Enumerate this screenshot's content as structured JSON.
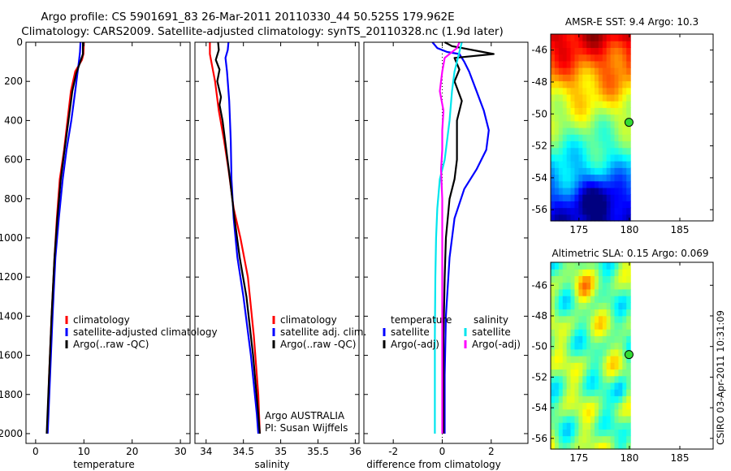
{
  "figure": {
    "title_line1": "Argo profile: CS 5901691_83 26-Mar-2011 20110330_44 50.525S 179.962E",
    "title_line2": "Climatology: CARS2009. Satellite-adjusted climatology: synTS_20110328.nc (1.9d later)",
    "side_stamp": "CSIRO 03-Apr-2011 10:31:09",
    "attribution_line1": "Argo AUSTRALIA",
    "attribution_line2": "PI: Susan Wijffels"
  },
  "colors": {
    "climatology": "#ff0000",
    "satellite": "#0000ff",
    "argo": "#000000",
    "satellite_cyan": "#00e5ee",
    "argo_adj": "#ff00ff",
    "zero_line": "#000000"
  },
  "chart_data": [
    {
      "type": "line",
      "id": "temperature",
      "xlabel": "temperature",
      "ylabel": "",
      "xlim": [
        -2,
        32
      ],
      "ylim": [
        2050,
        0
      ],
      "y_reversed": true,
      "xticks": [
        0,
        10,
        20,
        30
      ],
      "yticks": [
        0,
        200,
        400,
        600,
        800,
        1000,
        1200,
        1400,
        1600,
        1800,
        2000
      ],
      "grid": false,
      "legend": {
        "placement": "lower-middle",
        "entries": [
          {
            "label": "climatology",
            "color_key": "climatology"
          },
          {
            "label": "satellite-adjusted climatology",
            "color_key": "satellite"
          },
          {
            "label": "Argo(..raw -QC)",
            "color_key": "argo"
          }
        ]
      },
      "series": [
        {
          "name": "climatology",
          "color_key": "climatology",
          "points": [
            [
              10.0,
              0
            ],
            [
              9.9,
              60
            ],
            [
              9.6,
              90
            ],
            [
              8.2,
              150
            ],
            [
              7.3,
              250
            ],
            [
              6.6,
              400
            ],
            [
              5.9,
              550
            ],
            [
              5.0,
              700
            ],
            [
              4.4,
              900
            ],
            [
              3.9,
              1100
            ],
            [
              3.3,
              1400
            ],
            [
              2.8,
              1700
            ],
            [
              2.4,
              2000
            ]
          ]
        },
        {
          "name": "satellite-adjusted climatology",
          "color_key": "satellite",
          "points": [
            [
              9.3,
              0
            ],
            [
              9.2,
              50
            ],
            [
              9.0,
              90
            ],
            [
              8.7,
              150
            ],
            [
              8.2,
              250
            ],
            [
              7.4,
              400
            ],
            [
              6.4,
              550
            ],
            [
              5.6,
              700
            ],
            [
              4.8,
              900
            ],
            [
              4.1,
              1100
            ],
            [
              3.5,
              1400
            ],
            [
              3.0,
              1700
            ],
            [
              2.5,
              2000
            ]
          ]
        },
        {
          "name": "Argo(..raw -QC)",
          "color_key": "argo",
          "points": [
            [
              9.8,
              0
            ],
            [
              9.8,
              60
            ],
            [
              9.4,
              90
            ],
            [
              8.4,
              160
            ],
            [
              7.6,
              250
            ],
            [
              6.8,
              400
            ],
            [
              6.0,
              550
            ],
            [
              5.2,
              700
            ],
            [
              4.5,
              900
            ],
            [
              3.9,
              1100
            ],
            [
              3.3,
              1400
            ],
            [
              2.8,
              1700
            ],
            [
              2.3,
              2000
            ]
          ]
        }
      ]
    },
    {
      "type": "line",
      "id": "salinity",
      "xlabel": "salinity",
      "ylabel": "",
      "xlim": [
        33.85,
        36.05
      ],
      "ylim": [
        2050,
        0
      ],
      "y_reversed": true,
      "xticks": [
        34,
        34.5,
        35,
        35.5,
        36
      ],
      "xtick_labels": [
        "34",
        "34.5",
        "35",
        "35.5",
        "36"
      ],
      "yticks": [
        0,
        200,
        400,
        600,
        800,
        1000,
        1200,
        1400,
        1600,
        1800,
        2000
      ],
      "grid": false,
      "legend": {
        "placement": "lower-right",
        "entries": [
          {
            "label": "climatology",
            "color_key": "climatology"
          },
          {
            "label": "satellite adj. clim.",
            "color_key": "satellite"
          },
          {
            "label": "Argo(..raw -QC)",
            "color_key": "argo"
          }
        ]
      },
      "series": [
        {
          "name": "climatology",
          "color_key": "climatology",
          "points": [
            [
              34.05,
              0
            ],
            [
              34.05,
              60
            ],
            [
              34.08,
              120
            ],
            [
              34.12,
              200
            ],
            [
              34.17,
              350
            ],
            [
              34.24,
              500
            ],
            [
              34.3,
              650
            ],
            [
              34.37,
              850
            ],
            [
              34.46,
              1000
            ],
            [
              34.56,
              1200
            ],
            [
              34.64,
              1500
            ],
            [
              34.7,
              1800
            ],
            [
              34.72,
              2000
            ]
          ]
        },
        {
          "name": "satellite adj. clim.",
          "color_key": "satellite",
          "points": [
            [
              34.3,
              0
            ],
            [
              34.29,
              40
            ],
            [
              34.26,
              80
            ],
            [
              34.28,
              150
            ],
            [
              34.31,
              300
            ],
            [
              34.33,
              500
            ],
            [
              34.34,
              700
            ],
            [
              34.37,
              900
            ],
            [
              34.42,
              1100
            ],
            [
              34.5,
              1300
            ],
            [
              34.6,
              1600
            ],
            [
              34.68,
              1900
            ],
            [
              34.7,
              2000
            ]
          ]
        },
        {
          "name": "Argo(..raw -QC)",
          "color_key": "argo",
          "points": [
            [
              34.16,
              0
            ],
            [
              34.17,
              40
            ],
            [
              34.13,
              90
            ],
            [
              34.18,
              140
            ],
            [
              34.15,
              200
            ],
            [
              34.2,
              280
            ],
            [
              34.18,
              320
            ],
            [
              34.22,
              400
            ],
            [
              34.27,
              550
            ],
            [
              34.32,
              700
            ],
            [
              34.38,
              900
            ],
            [
              34.45,
              1100
            ],
            [
              34.54,
              1300
            ],
            [
              34.63,
              1600
            ],
            [
              34.7,
              1900
            ],
            [
              34.72,
              2000
            ]
          ]
        }
      ]
    },
    {
      "type": "line",
      "id": "difference",
      "xlabel": "difference from climatology",
      "ylabel": "",
      "xlim": [
        -3.2,
        3.5
      ],
      "ylim": [
        2050,
        0
      ],
      "y_reversed": true,
      "xticks": [
        -2,
        0,
        2
      ],
      "yticks": [
        0,
        200,
        400,
        600,
        800,
        1000,
        1200,
        1400,
        1600,
        1800,
        2000
      ],
      "grid": false,
      "legend": {
        "placement": "lower-middle",
        "groups": [
          {
            "heading": "temperature",
            "entries": [
              {
                "label": "satellite",
                "color_key": "satellite"
              },
              {
                "label": "Argo(-adj)",
                "color_key": "argo"
              }
            ]
          },
          {
            "heading": "salinity",
            "entries": [
              {
                "label": "satellite",
                "color_key": "satellite_cyan"
              },
              {
                "label": "Argo(-adj)",
                "color_key": "argo_adj"
              }
            ]
          }
        ]
      },
      "series": [
        {
          "name": "satellite (temperature)",
          "color_key": "satellite",
          "points": [
            [
              -0.4,
              0
            ],
            [
              -0.2,
              30
            ],
            [
              0.2,
              50
            ],
            [
              0.7,
              60
            ],
            [
              0.9,
              100
            ],
            [
              1.1,
              150
            ],
            [
              1.4,
              250
            ],
            [
              1.7,
              350
            ],
            [
              1.9,
              450
            ],
            [
              1.8,
              550
            ],
            [
              1.4,
              650
            ],
            [
              0.9,
              750
            ],
            [
              0.5,
              900
            ],
            [
              0.3,
              1100
            ],
            [
              0.15,
              1400
            ],
            [
              0.1,
              1700
            ],
            [
              0.1,
              2000
            ]
          ]
        },
        {
          "name": "Argo(-adj) (temperature)",
          "color_key": "argo",
          "points": [
            [
              0.1,
              0
            ],
            [
              0.4,
              20
            ],
            [
              2.1,
              60
            ],
            [
              0.5,
              80
            ],
            [
              0.7,
              140
            ],
            [
              0.5,
              200
            ],
            [
              0.8,
              300
            ],
            [
              0.6,
              400
            ],
            [
              0.6,
              500
            ],
            [
              0.6,
              600
            ],
            [
              0.5,
              700
            ],
            [
              0.3,
              800
            ],
            [
              0.15,
              1000
            ],
            [
              0.1,
              1200
            ],
            [
              0.05,
              1500
            ],
            [
              0.05,
              1800
            ],
            [
              0.05,
              2000
            ]
          ]
        },
        {
          "name": "satellite (salinity)",
          "color_key": "satellite_cyan",
          "points": [
            [
              0.8,
              0
            ],
            [
              0.7,
              50
            ],
            [
              0.5,
              150
            ],
            [
              0.4,
              250
            ],
            [
              0.3,
              400
            ],
            [
              0.2,
              500
            ],
            [
              0.1,
              600
            ],
            [
              -0.1,
              700
            ],
            [
              -0.2,
              850
            ],
            [
              -0.25,
              1000
            ],
            [
              -0.28,
              1200
            ],
            [
              -0.3,
              1500
            ],
            [
              -0.3,
              1800
            ],
            [
              -0.3,
              2000
            ]
          ]
        },
        {
          "name": "Argo(-adj) (salinity)",
          "color_key": "argo_adj",
          "points": [
            [
              0.7,
              0
            ],
            [
              0.6,
              30
            ],
            [
              0.1,
              80
            ],
            [
              0.0,
              150
            ],
            [
              -0.1,
              250
            ],
            [
              0.05,
              350
            ],
            [
              0.0,
              450
            ],
            [
              0.0,
              550
            ],
            [
              -0.05,
              650
            ],
            [
              0.0,
              800
            ],
            [
              0.0,
              1000
            ],
            [
              0.0,
              1300
            ],
            [
              0.0,
              1600
            ],
            [
              0.0,
              2000
            ]
          ]
        }
      ]
    },
    {
      "type": "heatmap",
      "id": "sst-map",
      "title": "AMSR-E SST: 9.4 Argo: 10.3",
      "xticks": [
        175,
        180,
        185
      ],
      "yticks": [
        -46,
        -48,
        -50,
        -52,
        -54,
        -56
      ],
      "xlim": [
        172.2,
        188.3
      ],
      "ylim": [
        -56.7,
        -45.0
      ],
      "data_extent": {
        "lon": [
          172.2,
          180.1
        ],
        "lat": [
          -56.7,
          -45.0
        ]
      },
      "colormap": "jet",
      "marker": {
        "lon": 179.962,
        "lat": -50.525,
        "color": "#33dd33"
      },
      "grid": false
    },
    {
      "type": "heatmap",
      "id": "sla-map",
      "title": "Altimetric SLA: 0.15 Argo: 0.069",
      "xticks": [
        175,
        180,
        185
      ],
      "yticks": [
        -46,
        -48,
        -50,
        -52,
        -54,
        -56
      ],
      "xlim": [
        172.2,
        188.3
      ],
      "ylim": [
        -56.7,
        -44.5
      ],
      "data_extent": {
        "lon": [
          172.2,
          180.1
        ],
        "lat": [
          -56.7,
          -44.5
        ]
      },
      "colormap": "jet",
      "marker": {
        "lon": 179.962,
        "lat": -50.525,
        "color": "#33dd33"
      },
      "grid": false
    }
  ]
}
